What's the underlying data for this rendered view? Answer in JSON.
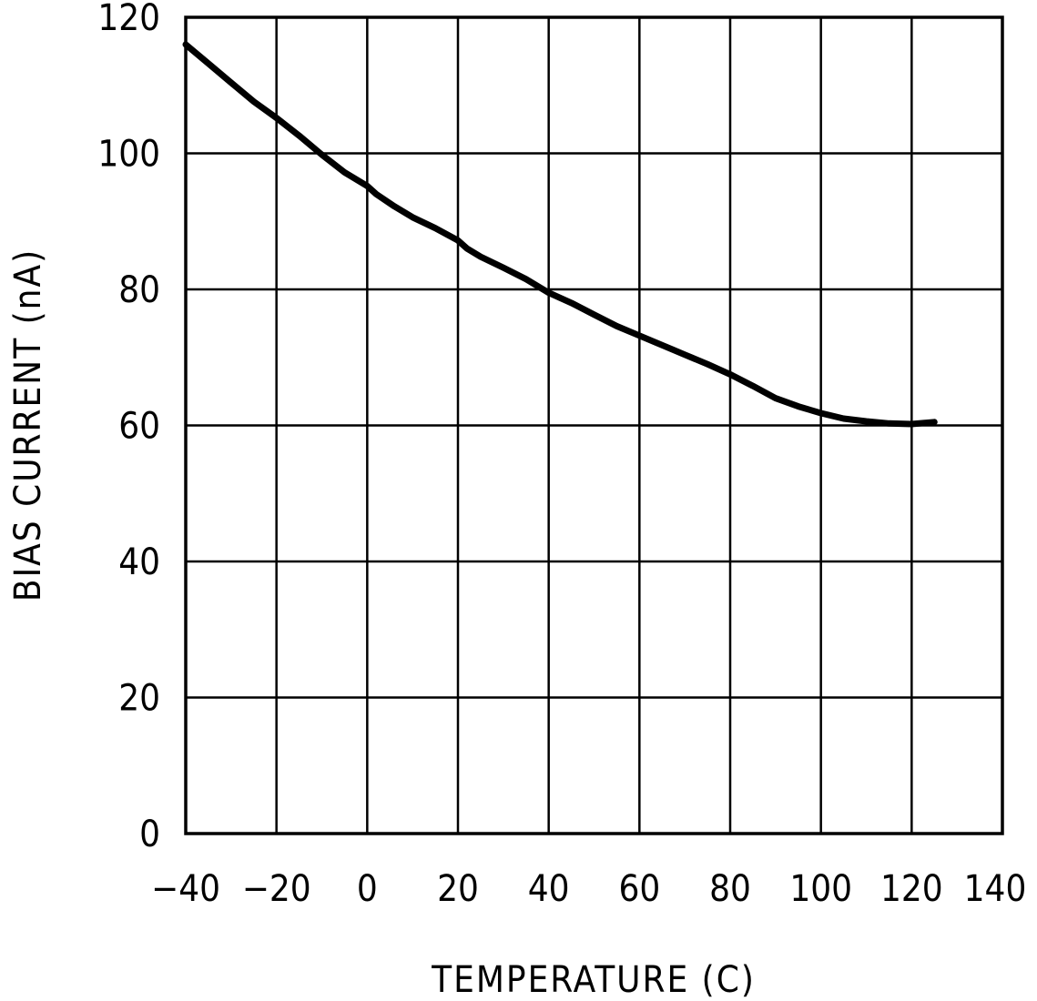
{
  "chart_data": {
    "type": "line",
    "title": "",
    "xlabel": "TEMPERATURE (C)",
    "ylabel": "BIAS CURRENT (nA)",
    "xlim": [
      -40,
      140
    ],
    "ylim": [
      0,
      120
    ],
    "x_ticks": [
      -40,
      -20,
      0,
      20,
      40,
      60,
      80,
      100,
      120,
      140
    ],
    "y_ticks": [
      0,
      20,
      40,
      60,
      80,
      100,
      120
    ],
    "x_tick_labels": [
      "−40",
      "−20",
      "0",
      "20",
      "40",
      "60",
      "80",
      "100",
      "120",
      "140"
    ],
    "y_tick_labels": [
      "0",
      "20",
      "40",
      "60",
      "80",
      "100",
      "120"
    ],
    "grid": true,
    "legend": "none",
    "series": [
      {
        "color": "#000000",
        "x": [
          -40,
          -35,
          -30,
          -25,
          -20,
          -15,
          -10,
          -5,
          0,
          2,
          6,
          10,
          15,
          20,
          22,
          25,
          30,
          35,
          40,
          45,
          50,
          55,
          60,
          65,
          70,
          75,
          80,
          85,
          90,
          95,
          100,
          105,
          110,
          115,
          120,
          125
        ],
        "y": [
          116.0,
          113.2,
          110.4,
          107.6,
          105.2,
          102.6,
          99.8,
          97.2,
          95.2,
          94.0,
          92.2,
          90.6,
          89.0,
          87.2,
          86.0,
          84.8,
          83.2,
          81.5,
          79.5,
          78.0,
          76.3,
          74.6,
          73.2,
          71.8,
          70.4,
          69.0,
          67.5,
          65.8,
          64.0,
          62.8,
          61.8,
          61.0,
          60.6,
          60.3,
          60.2,
          60.5
        ]
      }
    ]
  }
}
